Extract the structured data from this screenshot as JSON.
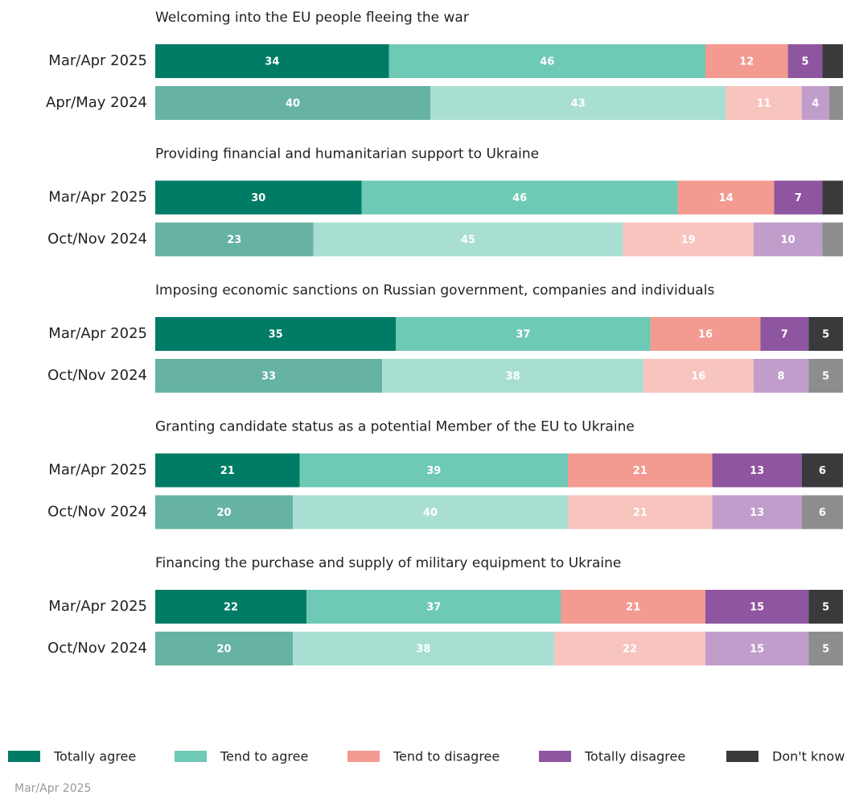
{
  "chart_data": {
    "type": "bar",
    "stacked": true,
    "orientation": "horizontal",
    "xlim": [
      0,
      100
    ],
    "series": [
      {
        "name": "Totally agree",
        "color": "#007c66",
        "light_color": "#66b3a3"
      },
      {
        "name": "Tend to agree",
        "color": "#6ec9b5",
        "light_color": "#a9dfd3"
      },
      {
        "name": "Tend to disagree",
        "color": "#f39a91",
        "light_color": "#f8c4be"
      },
      {
        "name": "Totally disagree",
        "color": "#8e55a0",
        "light_color": "#c19dcc"
      },
      {
        "name": "Don't know",
        "color": "#3a3a3c",
        "light_color": "#8d8d8f"
      }
    ],
    "groups": [
      {
        "title": "Welcoming into the EU people fleeing the war",
        "categories": [
          "Mar/Apr 2025",
          "Apr/May 2024"
        ],
        "values": [
          [
            34,
            46,
            12,
            5,
            3
          ],
          [
            40,
            43,
            11,
            4,
            2
          ]
        ]
      },
      {
        "title": "Providing financial and humanitarian support to Ukraine",
        "categories": [
          "Mar/Apr 2025",
          "Oct/Nov 2024"
        ],
        "values": [
          [
            30,
            46,
            14,
            7,
            3
          ],
          [
            23,
            45,
            19,
            10,
            3
          ]
        ]
      },
      {
        "title": "Imposing economic sanctions on Russian government, companies and individuals",
        "categories": [
          "Mar/Apr 2025",
          "Oct/Nov 2024"
        ],
        "values": [
          [
            35,
            37,
            16,
            7,
            5
          ],
          [
            33,
            38,
            16,
            8,
            5
          ]
        ]
      },
      {
        "title": "Granting candidate status as a potential Member of the EU to Ukraine",
        "categories": [
          "Mar/Apr 2025",
          "Oct/Nov 2024"
        ],
        "values": [
          [
            21,
            39,
            21,
            13,
            6
          ],
          [
            20,
            40,
            21,
            13,
            6
          ]
        ]
      },
      {
        "title": "Financing the purchase and supply of military equipment to Ukraine",
        "categories": [
          "Mar/Apr 2025",
          "Oct/Nov 2024"
        ],
        "values": [
          [
            22,
            37,
            21,
            15,
            5
          ],
          [
            20,
            38,
            22,
            15,
            5
          ]
        ]
      }
    ],
    "footnote": "Mar/Apr 2025"
  }
}
